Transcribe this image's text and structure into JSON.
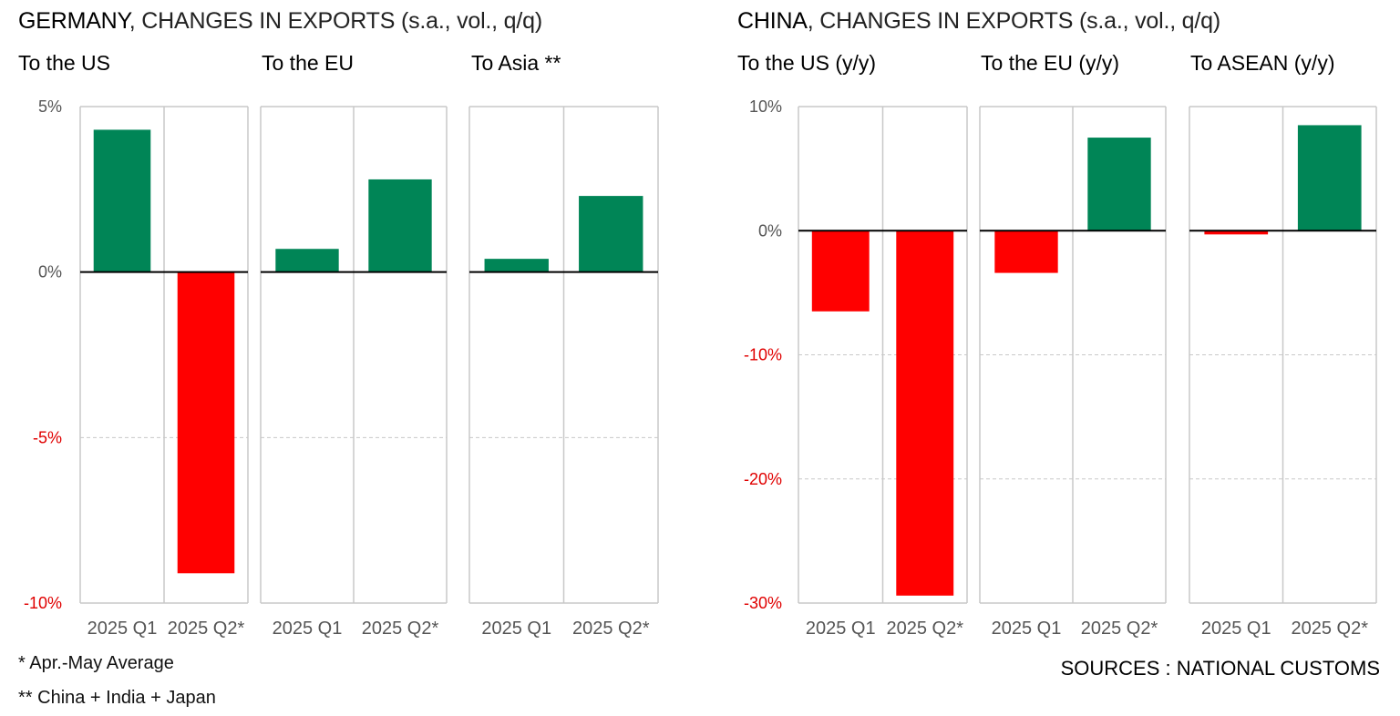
{
  "colors": {
    "positive": "#008556",
    "negative": "#ff0000",
    "grid": "#c8c8c8",
    "axis": "#000000",
    "tick_negative": "#e00000",
    "tick_text": "#555555"
  },
  "germany": {
    "title_country": "GERMANY",
    "title_rest": ", CHANGES IN EXPORTS (s.a., vol., q/q)",
    "panel_titles": [
      "To the US",
      "To the EU",
      "To Asia **"
    ],
    "notes": [
      "* Apr.-May Average",
      "** China + India + Japan"
    ]
  },
  "china": {
    "title_country": "CHINA",
    "title_rest": ", CHANGES IN EXPORTS (s.a., vol., q/q)",
    "panel_titles": [
      "To the US (y/y)",
      "To the EU (y/y)",
      "To ASEAN (y/y)"
    ]
  },
  "source": "SOURCES : NATIONAL CUSTOMS",
  "chart_data": [
    {
      "type": "bar",
      "title": "GERMANY, CHANGES IN EXPORTS (s.a., vol., q/q)",
      "categories": [
        "2025 Q1",
        "2025 Q2*"
      ],
      "ylim": [
        -10,
        5
      ],
      "yticks": [
        5,
        0,
        -5,
        -10
      ],
      "ytick_labels": [
        "5%",
        "0%",
        "-5%",
        "-10%"
      ],
      "grid": true,
      "panels": [
        {
          "name": "To the US",
          "values": [
            4.3,
            -9.1
          ]
        },
        {
          "name": "To the EU",
          "values": [
            0.7,
            2.8
          ]
        },
        {
          "name": "To Asia **",
          "values": [
            0.4,
            2.3
          ]
        }
      ]
    },
    {
      "type": "bar",
      "title": "CHINA, CHANGES IN EXPORTS (s.a., vol., q/q)",
      "categories": [
        "2025 Q1",
        "2025 Q2*"
      ],
      "ylim": [
        -30,
        10
      ],
      "yticks": [
        10,
        0,
        -10,
        -20,
        -30
      ],
      "ytick_labels": [
        "10%",
        "0%",
        "-10%",
        "-20%",
        "-30%"
      ],
      "grid": true,
      "panels": [
        {
          "name": "To the US (y/y)",
          "values": [
            -6.5,
            -29.4
          ]
        },
        {
          "name": "To the EU (y/y)",
          "values": [
            -3.4,
            7.5
          ]
        },
        {
          "name": "To ASEAN (y/y)",
          "values": [
            -0.3,
            8.5
          ]
        }
      ]
    }
  ]
}
